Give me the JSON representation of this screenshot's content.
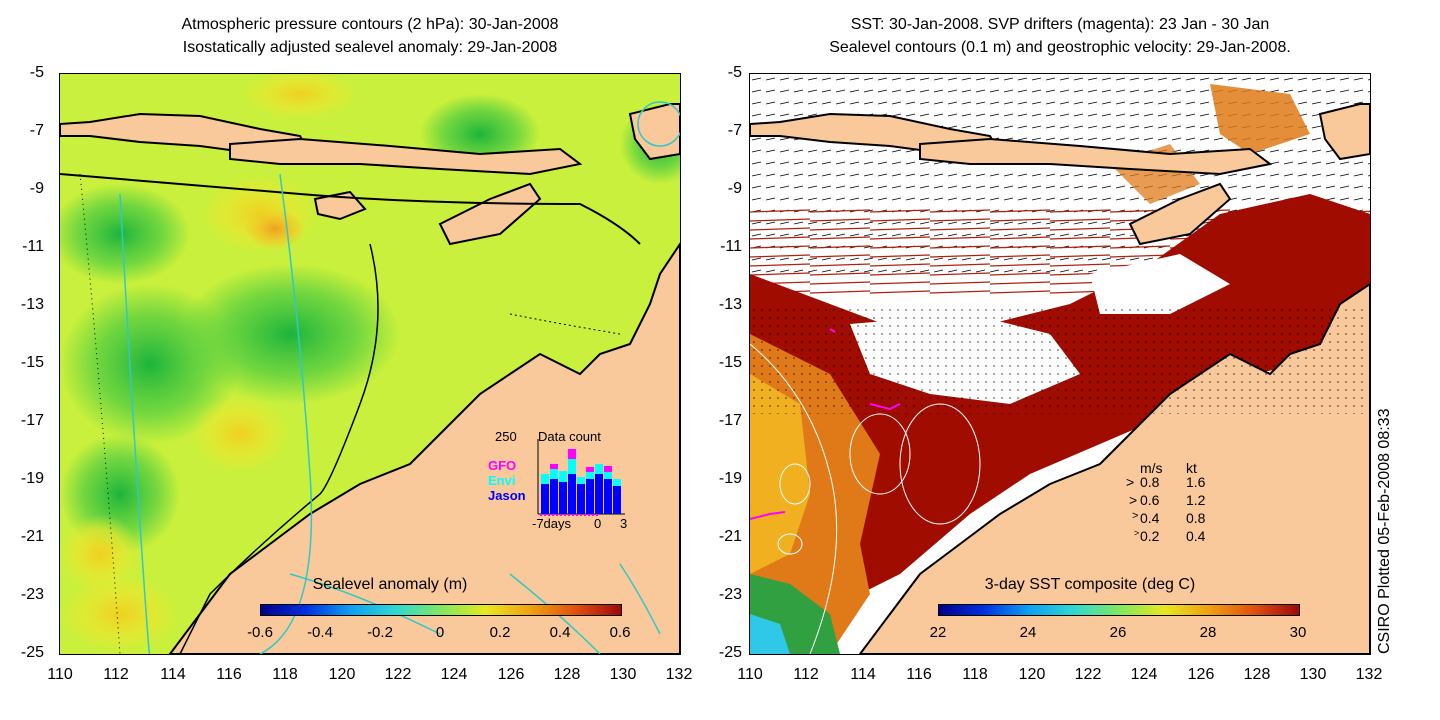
{
  "left_panel": {
    "title_line1": "Atmospheric pressure contours (2 hPa): 30-Jan-2008",
    "title_line2": "Isostatically adjusted sealevel anomaly: 29-Jan-2008",
    "y_ticks": [
      "-5",
      "-7",
      "-9",
      "-11",
      "-13",
      "-15",
      "-17",
      "-19",
      "-21",
      "-23",
      "-25"
    ],
    "x_ticks": [
      "110",
      "112",
      "114",
      "116",
      "118",
      "120",
      "122",
      "124",
      "126",
      "128",
      "130",
      "132"
    ],
    "colorbar_title": "Sealevel anomaly (m)",
    "colorbar_ticks": [
      "-0.6",
      "-0.4",
      "-0.2",
      "0",
      "0.2",
      "0.4",
      "0.6"
    ],
    "inset": {
      "count_max": "250",
      "title": "Data count",
      "series": [
        {
          "name": "GFO",
          "color": "#ff00ff"
        },
        {
          "name": "Envi",
          "color": "#00ffff"
        },
        {
          "name": "Jason",
          "color": "#0000ff"
        }
      ],
      "x_start": "-7days",
      "x_zero": "0",
      "x_end": "3"
    }
  },
  "right_panel": {
    "title_line1": "SST: 30-Jan-2008. SVP drifters (magenta): 23 Jan - 30 Jan",
    "title_line2": "Sealevel contours (0.1 m) and geostrophic velocity: 29-Jan-2008.",
    "y_ticks": [
      "-5",
      "-7",
      "-9",
      "-11",
      "-13",
      "-15",
      "-17",
      "-19",
      "-21",
      "-23",
      "-25"
    ],
    "x_ticks": [
      "110",
      "112",
      "114",
      "116",
      "118",
      "120",
      "122",
      "124",
      "126",
      "128",
      "130",
      "132"
    ],
    "colorbar_title": "3-day SST composite (deg C)",
    "colorbar_ticks": [
      "22",
      "24",
      "26",
      "28",
      "30"
    ],
    "velocity_legend": {
      "header_ms": "m/s",
      "header_kt": "kt",
      "rows": [
        {
          "ms": "0.8",
          "kt": "1.6"
        },
        {
          "ms": "0.6",
          "kt": "1.2"
        },
        {
          "ms": "0.4",
          "kt": "0.8"
        },
        {
          "ms": "0.2",
          "kt": "0.4"
        }
      ]
    }
  },
  "credit": "CSIRO Plotted 05-Feb-2008 08:33",
  "colors": {
    "land": "#f9c89b",
    "sla_base": "#c8f03c",
    "sst_warm": "#a00c00",
    "sst_orange": "#e07a18",
    "cloud": "#ffffff"
  }
}
